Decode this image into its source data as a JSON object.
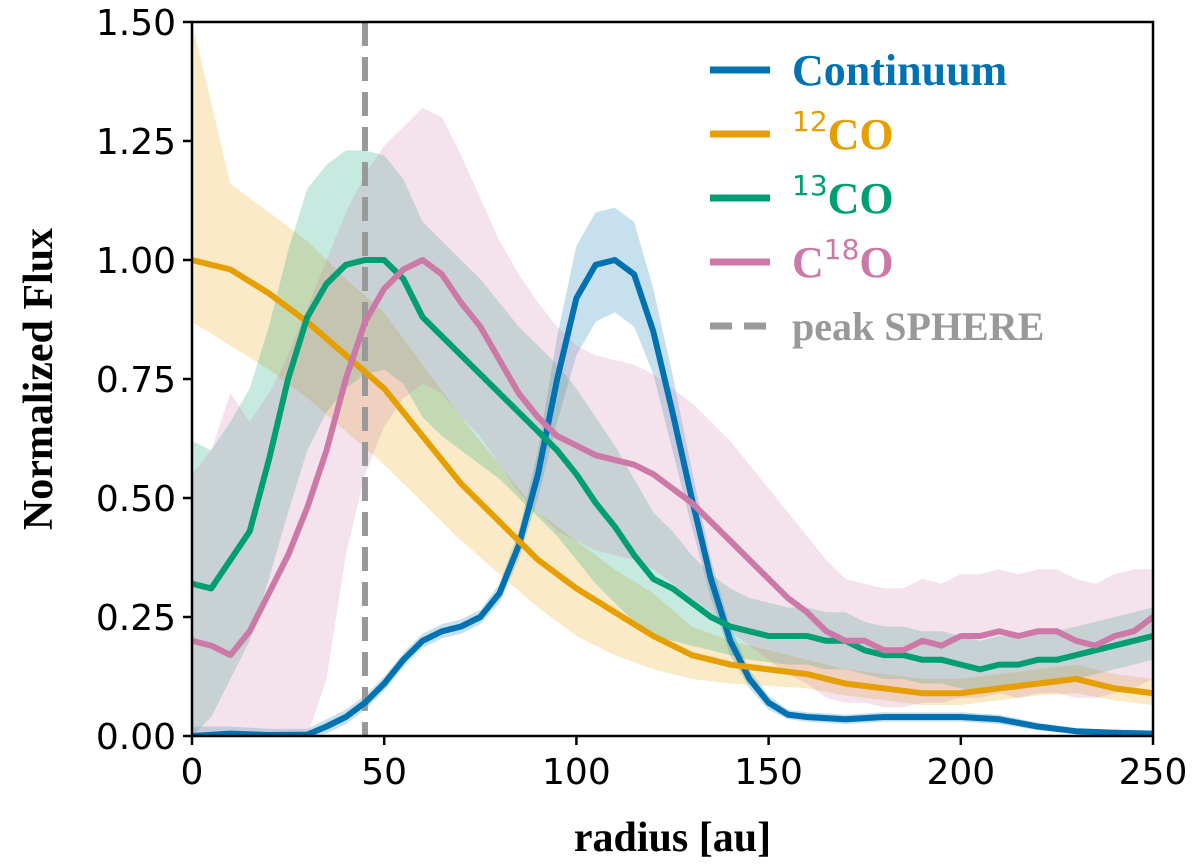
{
  "chart_data": {
    "type": "line",
    "title": "",
    "xlabel": "radius [au]",
    "ylabel": "Normalized Flux",
    "xlim": [
      0,
      250
    ],
    "ylim": [
      0,
      1.5
    ],
    "x_ticks": [
      0,
      50,
      100,
      150,
      200,
      250
    ],
    "x_tick_labels": [
      "0",
      "50",
      "100",
      "150",
      "200",
      "250"
    ],
    "y_ticks": [
      0,
      0.25,
      0.5,
      0.75,
      1.0,
      1.25,
      1.5
    ],
    "y_tick_labels": [
      "0.00",
      "0.25",
      "0.50",
      "0.75",
      "1.00",
      "1.25",
      "1.50"
    ],
    "grid": false,
    "legend_position": "top-right",
    "vline": {
      "x": 45,
      "name": "peak SPHERE",
      "color": "#999999",
      "style": "dashed"
    },
    "series": [
      {
        "name": "Continuum",
        "label_main": "Continuum",
        "label_sup": "",
        "label_tail": "",
        "color": "#0072b2",
        "x": [
          0,
          10,
          20,
          30,
          35,
          40,
          45,
          50,
          55,
          60,
          65,
          70,
          75,
          80,
          85,
          90,
          95,
          100,
          105,
          110,
          115,
          120,
          125,
          130,
          135,
          140,
          145,
          150,
          155,
          160,
          170,
          180,
          190,
          200,
          210,
          220,
          230,
          240,
          250
        ],
        "y": [
          0.0,
          0.005,
          0.002,
          0.003,
          0.02,
          0.04,
          0.07,
          0.11,
          0.16,
          0.2,
          0.22,
          0.23,
          0.25,
          0.3,
          0.4,
          0.55,
          0.75,
          0.92,
          0.99,
          1.0,
          0.97,
          0.85,
          0.68,
          0.5,
          0.33,
          0.2,
          0.12,
          0.07,
          0.045,
          0.04,
          0.035,
          0.04,
          0.04,
          0.04,
          0.035,
          0.02,
          0.01,
          0.007,
          0.005
        ],
        "lo": [
          0.0,
          0.0,
          0.0,
          0.0,
          0.005,
          0.025,
          0.055,
          0.095,
          0.145,
          0.185,
          0.205,
          0.215,
          0.235,
          0.28,
          0.37,
          0.5,
          0.66,
          0.8,
          0.87,
          0.89,
          0.86,
          0.76,
          0.6,
          0.44,
          0.29,
          0.17,
          0.1,
          0.055,
          0.035,
          0.03,
          0.025,
          0.03,
          0.03,
          0.03,
          0.025,
          0.012,
          0.004,
          0.001,
          0.0
        ],
        "hi": [
          0.02,
          0.02,
          0.015,
          0.015,
          0.035,
          0.055,
          0.085,
          0.125,
          0.175,
          0.215,
          0.235,
          0.245,
          0.265,
          0.32,
          0.43,
          0.6,
          0.84,
          1.03,
          1.1,
          1.11,
          1.08,
          0.94,
          0.76,
          0.56,
          0.37,
          0.23,
          0.14,
          0.085,
          0.055,
          0.05,
          0.045,
          0.05,
          0.05,
          0.05,
          0.045,
          0.028,
          0.016,
          0.013,
          0.01
        ]
      },
      {
        "name": "12CO",
        "label_main": "",
        "label_sup": "12",
        "label_tail": "CO",
        "color": "#e69f00",
        "x": [
          0,
          10,
          20,
          30,
          40,
          50,
          60,
          70,
          80,
          90,
          100,
          110,
          120,
          130,
          140,
          150,
          160,
          170,
          180,
          190,
          200,
          210,
          220,
          230,
          240,
          250
        ],
        "y": [
          1.0,
          0.98,
          0.93,
          0.87,
          0.8,
          0.73,
          0.63,
          0.53,
          0.45,
          0.37,
          0.31,
          0.26,
          0.21,
          0.17,
          0.15,
          0.14,
          0.13,
          0.11,
          0.1,
          0.09,
          0.09,
          0.1,
          0.11,
          0.12,
          0.1,
          0.09
        ],
        "lo": [
          0.87,
          0.82,
          0.77,
          0.71,
          0.64,
          0.57,
          0.49,
          0.41,
          0.34,
          0.27,
          0.21,
          0.17,
          0.14,
          0.12,
          0.11,
          0.105,
          0.1,
          0.085,
          0.075,
          0.065,
          0.065,
          0.075,
          0.085,
          0.09,
          0.075,
          0.065
        ],
        "hi": [
          1.5,
          1.16,
          1.1,
          1.04,
          0.96,
          0.89,
          0.78,
          0.67,
          0.57,
          0.47,
          0.41,
          0.35,
          0.3,
          0.23,
          0.2,
          0.18,
          0.16,
          0.14,
          0.13,
          0.12,
          0.12,
          0.13,
          0.14,
          0.15,
          0.13,
          0.12
        ]
      },
      {
        "name": "13CO",
        "label_main": "",
        "label_sup": "13",
        "label_tail": "CO",
        "color": "#009e73",
        "x": [
          0,
          5,
          10,
          15,
          20,
          25,
          30,
          35,
          40,
          45,
          50,
          55,
          60,
          65,
          70,
          75,
          80,
          85,
          90,
          95,
          100,
          105,
          110,
          115,
          120,
          125,
          130,
          135,
          140,
          145,
          150,
          155,
          160,
          165,
          170,
          175,
          180,
          185,
          190,
          195,
          200,
          205,
          210,
          215,
          220,
          225,
          230,
          235,
          240,
          245,
          250
        ],
        "y": [
          0.32,
          0.31,
          0.37,
          0.43,
          0.58,
          0.75,
          0.88,
          0.95,
          0.99,
          1.0,
          1.0,
          0.96,
          0.88,
          0.84,
          0.8,
          0.76,
          0.72,
          0.68,
          0.64,
          0.6,
          0.55,
          0.49,
          0.44,
          0.38,
          0.33,
          0.31,
          0.28,
          0.25,
          0.23,
          0.22,
          0.21,
          0.21,
          0.21,
          0.2,
          0.2,
          0.18,
          0.17,
          0.17,
          0.16,
          0.16,
          0.15,
          0.14,
          0.15,
          0.15,
          0.16,
          0.16,
          0.17,
          0.18,
          0.19,
          0.2,
          0.21
        ],
        "lo": [
          0.0,
          0.04,
          0.12,
          0.2,
          0.33,
          0.47,
          0.6,
          0.68,
          0.73,
          0.76,
          0.77,
          0.74,
          0.67,
          0.63,
          0.6,
          0.57,
          0.54,
          0.5,
          0.46,
          0.42,
          0.37,
          0.32,
          0.28,
          0.24,
          0.21,
          0.2,
          0.19,
          0.18,
          0.17,
          0.16,
          0.155,
          0.15,
          0.15,
          0.14,
          0.14,
          0.13,
          0.12,
          0.12,
          0.11,
          0.11,
          0.1,
          0.09,
          0.1,
          0.1,
          0.11,
          0.11,
          0.12,
          0.13,
          0.14,
          0.15,
          0.16
        ],
        "hi": [
          0.62,
          0.6,
          0.66,
          0.73,
          0.86,
          1.02,
          1.15,
          1.2,
          1.23,
          1.23,
          1.22,
          1.17,
          1.08,
          1.04,
          1.0,
          0.96,
          0.91,
          0.86,
          0.82,
          0.78,
          0.73,
          0.67,
          0.61,
          0.54,
          0.47,
          0.43,
          0.38,
          0.34,
          0.31,
          0.29,
          0.28,
          0.27,
          0.27,
          0.26,
          0.26,
          0.24,
          0.23,
          0.23,
          0.22,
          0.22,
          0.21,
          0.2,
          0.21,
          0.21,
          0.22,
          0.22,
          0.23,
          0.24,
          0.25,
          0.26,
          0.27
        ]
      },
      {
        "name": "C18O",
        "label_main": "C",
        "label_sup": "18",
        "label_tail": "O",
        "color": "#cc79a7",
        "x": [
          0,
          5,
          10,
          15,
          20,
          25,
          30,
          35,
          40,
          45,
          50,
          55,
          60,
          65,
          70,
          75,
          80,
          85,
          90,
          95,
          100,
          105,
          110,
          115,
          120,
          125,
          130,
          135,
          140,
          145,
          150,
          155,
          160,
          165,
          170,
          175,
          180,
          185,
          190,
          195,
          200,
          205,
          210,
          215,
          220,
          225,
          230,
          235,
          240,
          245,
          250
        ],
        "y": [
          0.2,
          0.19,
          0.17,
          0.22,
          0.3,
          0.38,
          0.48,
          0.6,
          0.75,
          0.87,
          0.94,
          0.98,
          1.0,
          0.97,
          0.91,
          0.86,
          0.79,
          0.72,
          0.67,
          0.63,
          0.61,
          0.59,
          0.58,
          0.57,
          0.55,
          0.52,
          0.49,
          0.45,
          0.41,
          0.37,
          0.33,
          0.29,
          0.26,
          0.22,
          0.2,
          0.2,
          0.18,
          0.18,
          0.2,
          0.19,
          0.21,
          0.21,
          0.22,
          0.21,
          0.22,
          0.22,
          0.2,
          0.19,
          0.21,
          0.22,
          0.25
        ],
        "lo": [
          0.0,
          0.0,
          0.0,
          0.0,
          0.0,
          0.0,
          0.0,
          0.12,
          0.38,
          0.55,
          0.65,
          0.71,
          0.74,
          0.72,
          0.67,
          0.63,
          0.57,
          0.51,
          0.47,
          0.43,
          0.41,
          0.39,
          0.38,
          0.37,
          0.35,
          0.32,
          0.29,
          0.26,
          0.22,
          0.19,
          0.16,
          0.13,
          0.11,
          0.08,
          0.07,
          0.07,
          0.06,
          0.06,
          0.07,
          0.07,
          0.08,
          0.08,
          0.09,
          0.08,
          0.09,
          0.09,
          0.08,
          0.08,
          0.09,
          0.1,
          0.12
        ],
        "hi": [
          0.55,
          0.6,
          0.72,
          0.66,
          0.72,
          0.8,
          0.9,
          1.0,
          1.1,
          1.18,
          1.24,
          1.28,
          1.32,
          1.3,
          1.22,
          1.13,
          1.04,
          0.97,
          0.91,
          0.86,
          0.82,
          0.8,
          0.79,
          0.78,
          0.76,
          0.73,
          0.7,
          0.66,
          0.62,
          0.57,
          0.52,
          0.47,
          0.42,
          0.37,
          0.33,
          0.32,
          0.31,
          0.31,
          0.33,
          0.32,
          0.34,
          0.34,
          0.35,
          0.34,
          0.35,
          0.35,
          0.33,
          0.32,
          0.34,
          0.35,
          0.35
        ]
      }
    ]
  }
}
